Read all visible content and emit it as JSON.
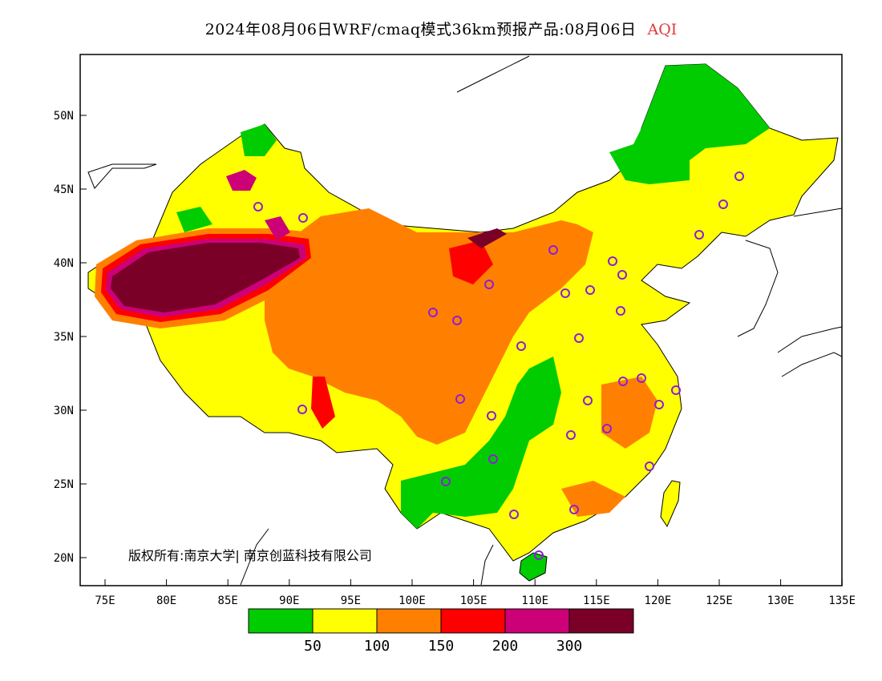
{
  "title": "2024年08月06日WRF/cmaq模式36km预报产品:08月06日",
  "variable": "AQI",
  "copyright": "版权所有:南京大学| 南京创蓝科技有限公司",
  "lat_ticks": [
    "50N",
    "45N",
    "40N",
    "35N",
    "30N",
    "25N",
    "20N"
  ],
  "lon_ticks": [
    "75E",
    "80E",
    "85E",
    "90E",
    "95E",
    "100E",
    "105E",
    "110E",
    "115E",
    "120E",
    "125E",
    "130E",
    "135E"
  ],
  "legend": {
    "colors": [
      "#00cc00",
      "#ffff00",
      "#ff8000",
      "#ff0000",
      "#cc0077",
      "#7a0028"
    ],
    "labels": [
      "50",
      "100",
      "150",
      "200",
      "300"
    ]
  },
  "colors": {
    "good": "#00cc00",
    "moderate": "#ffff00",
    "usg": "#ff8000",
    "unhealthy": "#ff0000",
    "very_unhealthy": "#cc0077",
    "hazardous": "#7a0028",
    "station": "#8b1fd6"
  }
}
